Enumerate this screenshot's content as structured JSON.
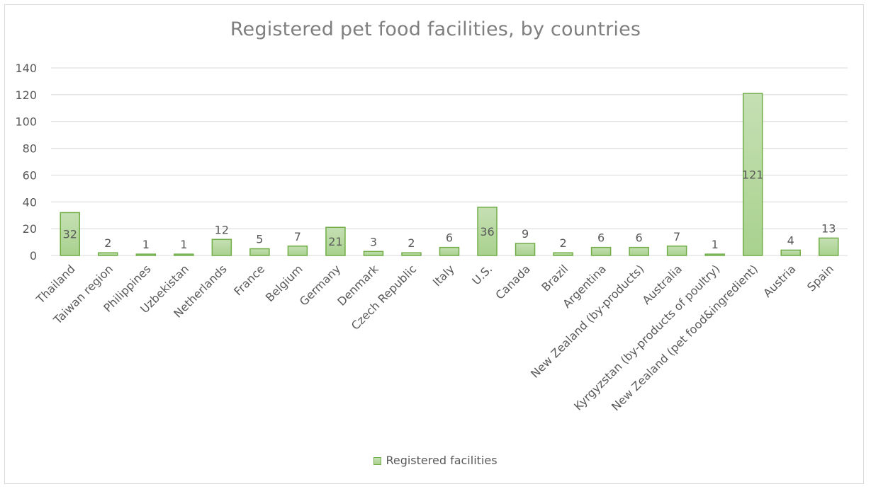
{
  "chart_data": {
    "type": "bar",
    "title": "Registered pet food facilities, by countries",
    "xlabel": "",
    "ylabel": "",
    "ylim": [
      0,
      140
    ],
    "yticks": [
      0,
      20,
      40,
      60,
      80,
      100,
      120,
      140
    ],
    "grid": true,
    "legend_position": "bottom",
    "categories": [
      "Thailand",
      "Taiwan region",
      "Philippines",
      "Uzbekistan",
      "Netherlands",
      "France",
      "Belgium",
      "Germany",
      "Denmark",
      "Czech Republic",
      "Italy",
      "U.S.",
      "Canada",
      "Brazil",
      "Argentina",
      "New Zealand (by-products)",
      "Australia",
      "Kyrgyzstan (by-products of poultry)",
      "New Zealand (pet food&ingredient)",
      "Austria",
      "Spain"
    ],
    "series": [
      {
        "name": "Registered facilities",
        "values": [
          32,
          2,
          1,
          1,
          12,
          5,
          7,
          21,
          3,
          2,
          6,
          36,
          9,
          2,
          6,
          6,
          7,
          1,
          121,
          4,
          13
        ]
      }
    ],
    "colors": {
      "bar_fill_top": "#c5e0b4",
      "bar_fill_bottom": "#a9d18e",
      "bar_stroke": "#70ad47",
      "grid": "#d9d9d9",
      "text": "#595959"
    }
  }
}
